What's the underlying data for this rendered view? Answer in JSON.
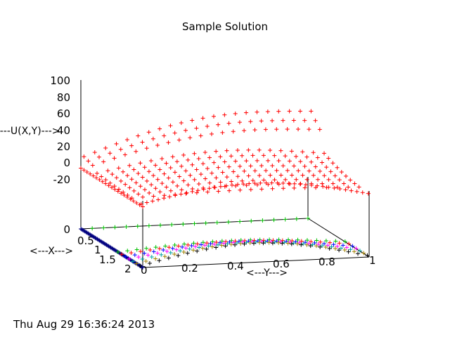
{
  "chart_data": {
    "type": "surface-3d",
    "title": "Sample Solution",
    "xlabel": "<---X--->",
    "ylabel": "<---Y--->",
    "zlabel": "<---U(X,Y)--->",
    "xlim": [
      0,
      2
    ],
    "ylim": [
      0,
      1
    ],
    "zlim": [
      -20,
      100
    ],
    "x_ticks": [
      "0.5",
      "1",
      "1.5",
      "2"
    ],
    "y_ticks": [
      "0",
      "0.2",
      "0.4",
      "0.6",
      "0.8",
      "1"
    ],
    "z_ticks": [
      "100",
      "80",
      "60",
      "40",
      "20",
      "0",
      "-20"
    ],
    "base_z_tick": "0",
    "grid": false,
    "series": [
      {
        "color": "#ff0000",
        "marker": "+"
      },
      {
        "color": "#00c000",
        "marker": "+"
      },
      {
        "color": "#0000ff",
        "marker": "+"
      },
      {
        "color": "#ff00ff",
        "marker": "+"
      },
      {
        "color": "#00a0a0",
        "marker": "+"
      },
      {
        "color": "#a08000",
        "marker": "+"
      },
      {
        "color": "#000000",
        "marker": "+"
      },
      {
        "color": "#000080",
        "marker": "+"
      }
    ]
  },
  "footer": {
    "timestamp": "Thu Aug 29 16:36:24 2013"
  }
}
